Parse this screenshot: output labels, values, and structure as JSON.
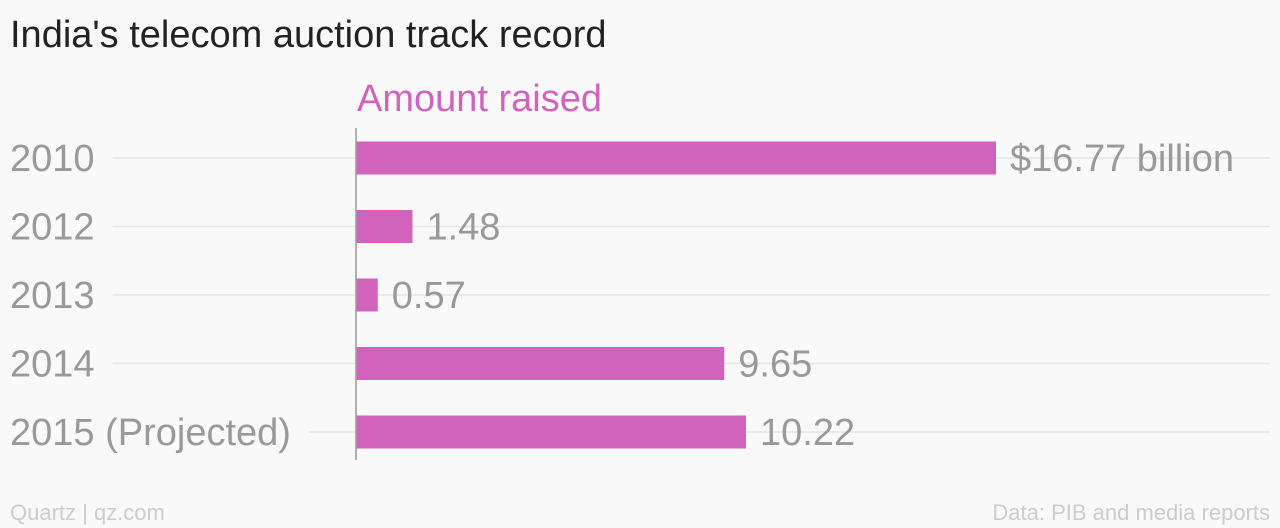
{
  "header": {
    "title": "India's telecom auction track record",
    "series_label": "Amount raised"
  },
  "footer": {
    "source_left": "Quartz | qz.com",
    "source_right": "Data: PIB and media reports"
  },
  "colors": {
    "bar": "#d163bd",
    "label": "#999999",
    "grid": "#e6e6e6",
    "axis": "#999999"
  },
  "chart_data": {
    "type": "bar",
    "orientation": "horizontal",
    "title": "India's telecom auction track record",
    "categories": [
      "2010",
      "2012",
      "2013",
      "2014",
      "2015 (Projected)"
    ],
    "series": [
      {
        "name": "Amount raised",
        "values": [
          16.77,
          1.48,
          0.57,
          9.65,
          10.22
        ]
      }
    ],
    "value_labels": [
      "$16.77 billion",
      "1.48",
      "0.57",
      "9.65",
      "10.22"
    ],
    "xlim": [
      0,
      16.77
    ],
    "grid": true,
    "legend": "none"
  }
}
